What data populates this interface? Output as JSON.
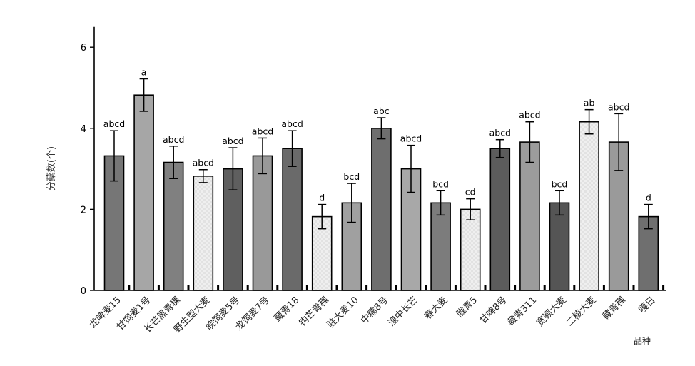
{
  "chart_data": {
    "type": "bar",
    "title": "",
    "xlabel": "品种",
    "ylabel": "分蘖数(个)",
    "ylim": [
      0,
      6.5
    ],
    "yticks": [
      0,
      2,
      4,
      6
    ],
    "grid": false,
    "categories": [
      "龙啤麦15",
      "甘饲麦1号",
      "长芒黑青稞",
      "野生型大麦",
      "皖饲麦5号",
      "龙饲麦7号",
      "藏青18",
      "钩芒青稞",
      "驻大麦10",
      "中糯8号",
      "湟中长芒",
      "春大麦",
      "陇青5",
      "甘啤8号",
      "藏青311",
      "宽颖大麦",
      "二棱大麦",
      "藏青稞",
      "嘎日"
    ],
    "values": [
      3.32,
      4.82,
      3.16,
      2.82,
      3.0,
      3.32,
      3.5,
      1.82,
      2.16,
      4.0,
      3.0,
      2.16,
      2.0,
      3.5,
      3.66,
      2.16,
      4.16,
      3.66,
      1.82
    ],
    "errors": [
      0.62,
      0.4,
      0.4,
      0.16,
      0.52,
      0.44,
      0.44,
      0.3,
      0.48,
      0.26,
      0.58,
      0.3,
      0.26,
      0.22,
      0.5,
      0.3,
      0.3,
      0.7,
      0.3
    ],
    "significance": [
      "abcd",
      "a",
      "abcd",
      "abcd",
      "abcd",
      "abcd",
      "abcd",
      "d",
      "bcd",
      "abc",
      "abcd",
      "bcd",
      "cd",
      "abcd",
      "abcd",
      "bcd",
      "ab",
      "abcd",
      "d"
    ],
    "colors": [
      "#767676",
      "#a6a6a6",
      "#808080",
      "#e4e4e4",
      "#5f5f5f",
      "#999999",
      "#6a6a6a",
      "#f2f2f2",
      "#a0a0a0",
      "#6e6e6e",
      "#a8a8a8",
      "#7c7c7c",
      "#e6e6e6",
      "#5c5c5c",
      "#9c9c9c",
      "#555555",
      "#f0f0f0",
      "#9a9a9a",
      "#6f6f6f"
    ]
  }
}
